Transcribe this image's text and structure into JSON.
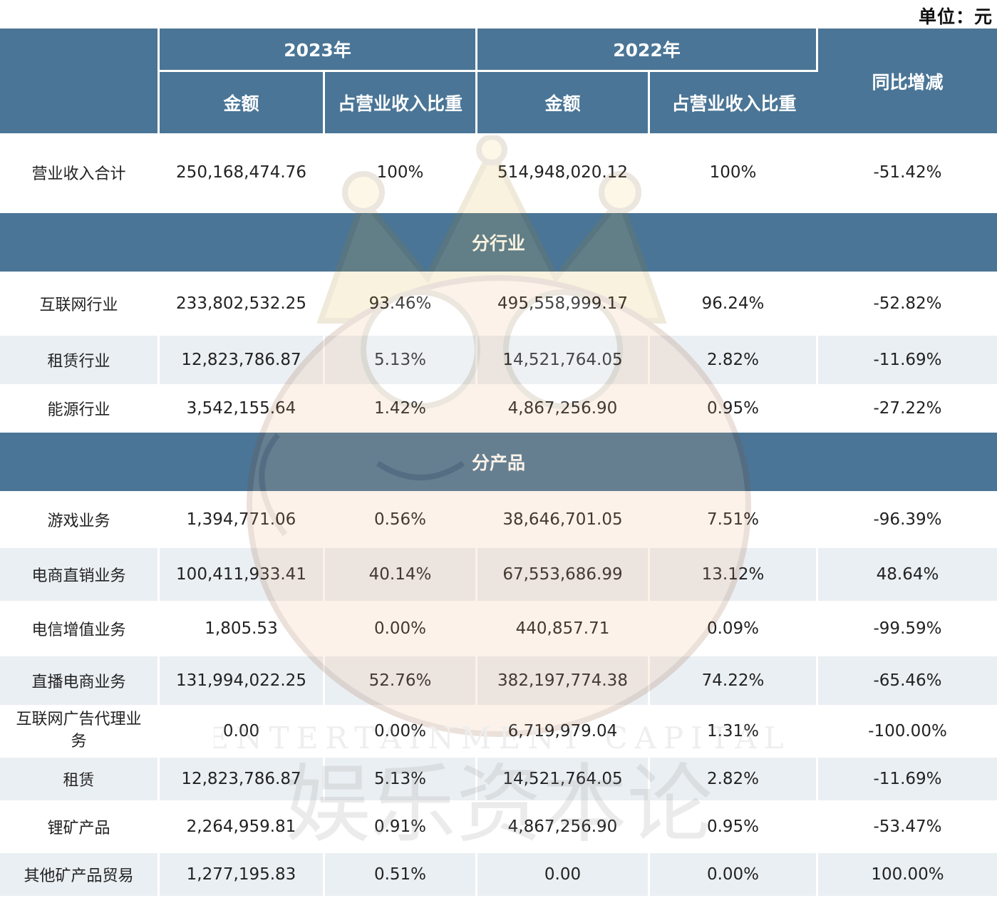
{
  "unit_label": "单位：元",
  "header": {
    "year_2023": "2023年",
    "year_2022": "2022年",
    "yoy": "同比增减",
    "amount": "金额",
    "ratio": "占营业收入比重"
  },
  "total": {
    "label": "营业收入合计",
    "amount_2023": "250,168,474.76",
    "ratio_2023": "100%",
    "amount_2022": "514,948,020.12",
    "ratio_2022": "100%",
    "yoy": "-51.42%"
  },
  "sections": [
    {
      "title": "分行业",
      "rows": [
        {
          "label": "互联网行业",
          "amount_2023": "233,802,532.25",
          "ratio_2023": "93.46%",
          "amount_2022": "495,558,999.17",
          "ratio_2022": "96.24%",
          "yoy": "-52.82%"
        },
        {
          "label": "租赁行业",
          "amount_2023": "12,823,786.87",
          "ratio_2023": "5.13%",
          "amount_2022": "14,521,764.05",
          "ratio_2022": "2.82%",
          "yoy": "-11.69%"
        },
        {
          "label": "能源行业",
          "amount_2023": "3,542,155.64",
          "ratio_2023": "1.42%",
          "amount_2022": "4,867,256.90",
          "ratio_2022": "0.95%",
          "yoy": "-27.22%"
        }
      ]
    },
    {
      "title": "分产品",
      "rows": [
        {
          "label": "游戏业务",
          "amount_2023": "1,394,771.06",
          "ratio_2023": "0.56%",
          "amount_2022": "38,646,701.05",
          "ratio_2022": "7.51%",
          "yoy": "-96.39%"
        },
        {
          "label": "电商直销业务",
          "amount_2023": "100,411,933.41",
          "ratio_2023": "40.14%",
          "amount_2022": "67,553,686.99",
          "ratio_2022": "13.12%",
          "yoy": "48.64%"
        },
        {
          "label": "电信增值业务",
          "amount_2023": "1,805.53",
          "ratio_2023": "0.00%",
          "amount_2022": "440,857.71",
          "ratio_2022": "0.09%",
          "yoy": "-99.59%"
        },
        {
          "label": "直播电商业务",
          "amount_2023": "131,994,022.25",
          "ratio_2023": "52.76%",
          "amount_2022": "382,197,774.38",
          "ratio_2022": "74.22%",
          "yoy": "-65.46%"
        },
        {
          "label": "互联网广告代理业务",
          "amount_2023": "0.00",
          "ratio_2023": "0.00%",
          "amount_2022": "6,719,979.04",
          "ratio_2022": "1.31%",
          "yoy": "-100.00%"
        },
        {
          "label": "租赁",
          "amount_2023": "12,823,786.87",
          "ratio_2023": "5.13%",
          "amount_2022": "14,521,764.05",
          "ratio_2022": "2.82%",
          "yoy": "-11.69%"
        },
        {
          "label": "锂矿产品",
          "amount_2023": "2,264,959.81",
          "ratio_2023": "0.91%",
          "amount_2022": "4,867,256.90",
          "ratio_2022": "0.95%",
          "yoy": "-53.47%"
        },
        {
          "label": "其他矿产品贸易",
          "amount_2023": "1,277,195.83",
          "ratio_2023": "0.51%",
          "amount_2022": "0.00",
          "ratio_2022": "0.00%",
          "yoy": "100.00%"
        }
      ]
    }
  ],
  "watermark": {
    "text_en": "ENTERTAINMENT CAPITAL",
    "text_cn": "娱乐资本论"
  }
}
